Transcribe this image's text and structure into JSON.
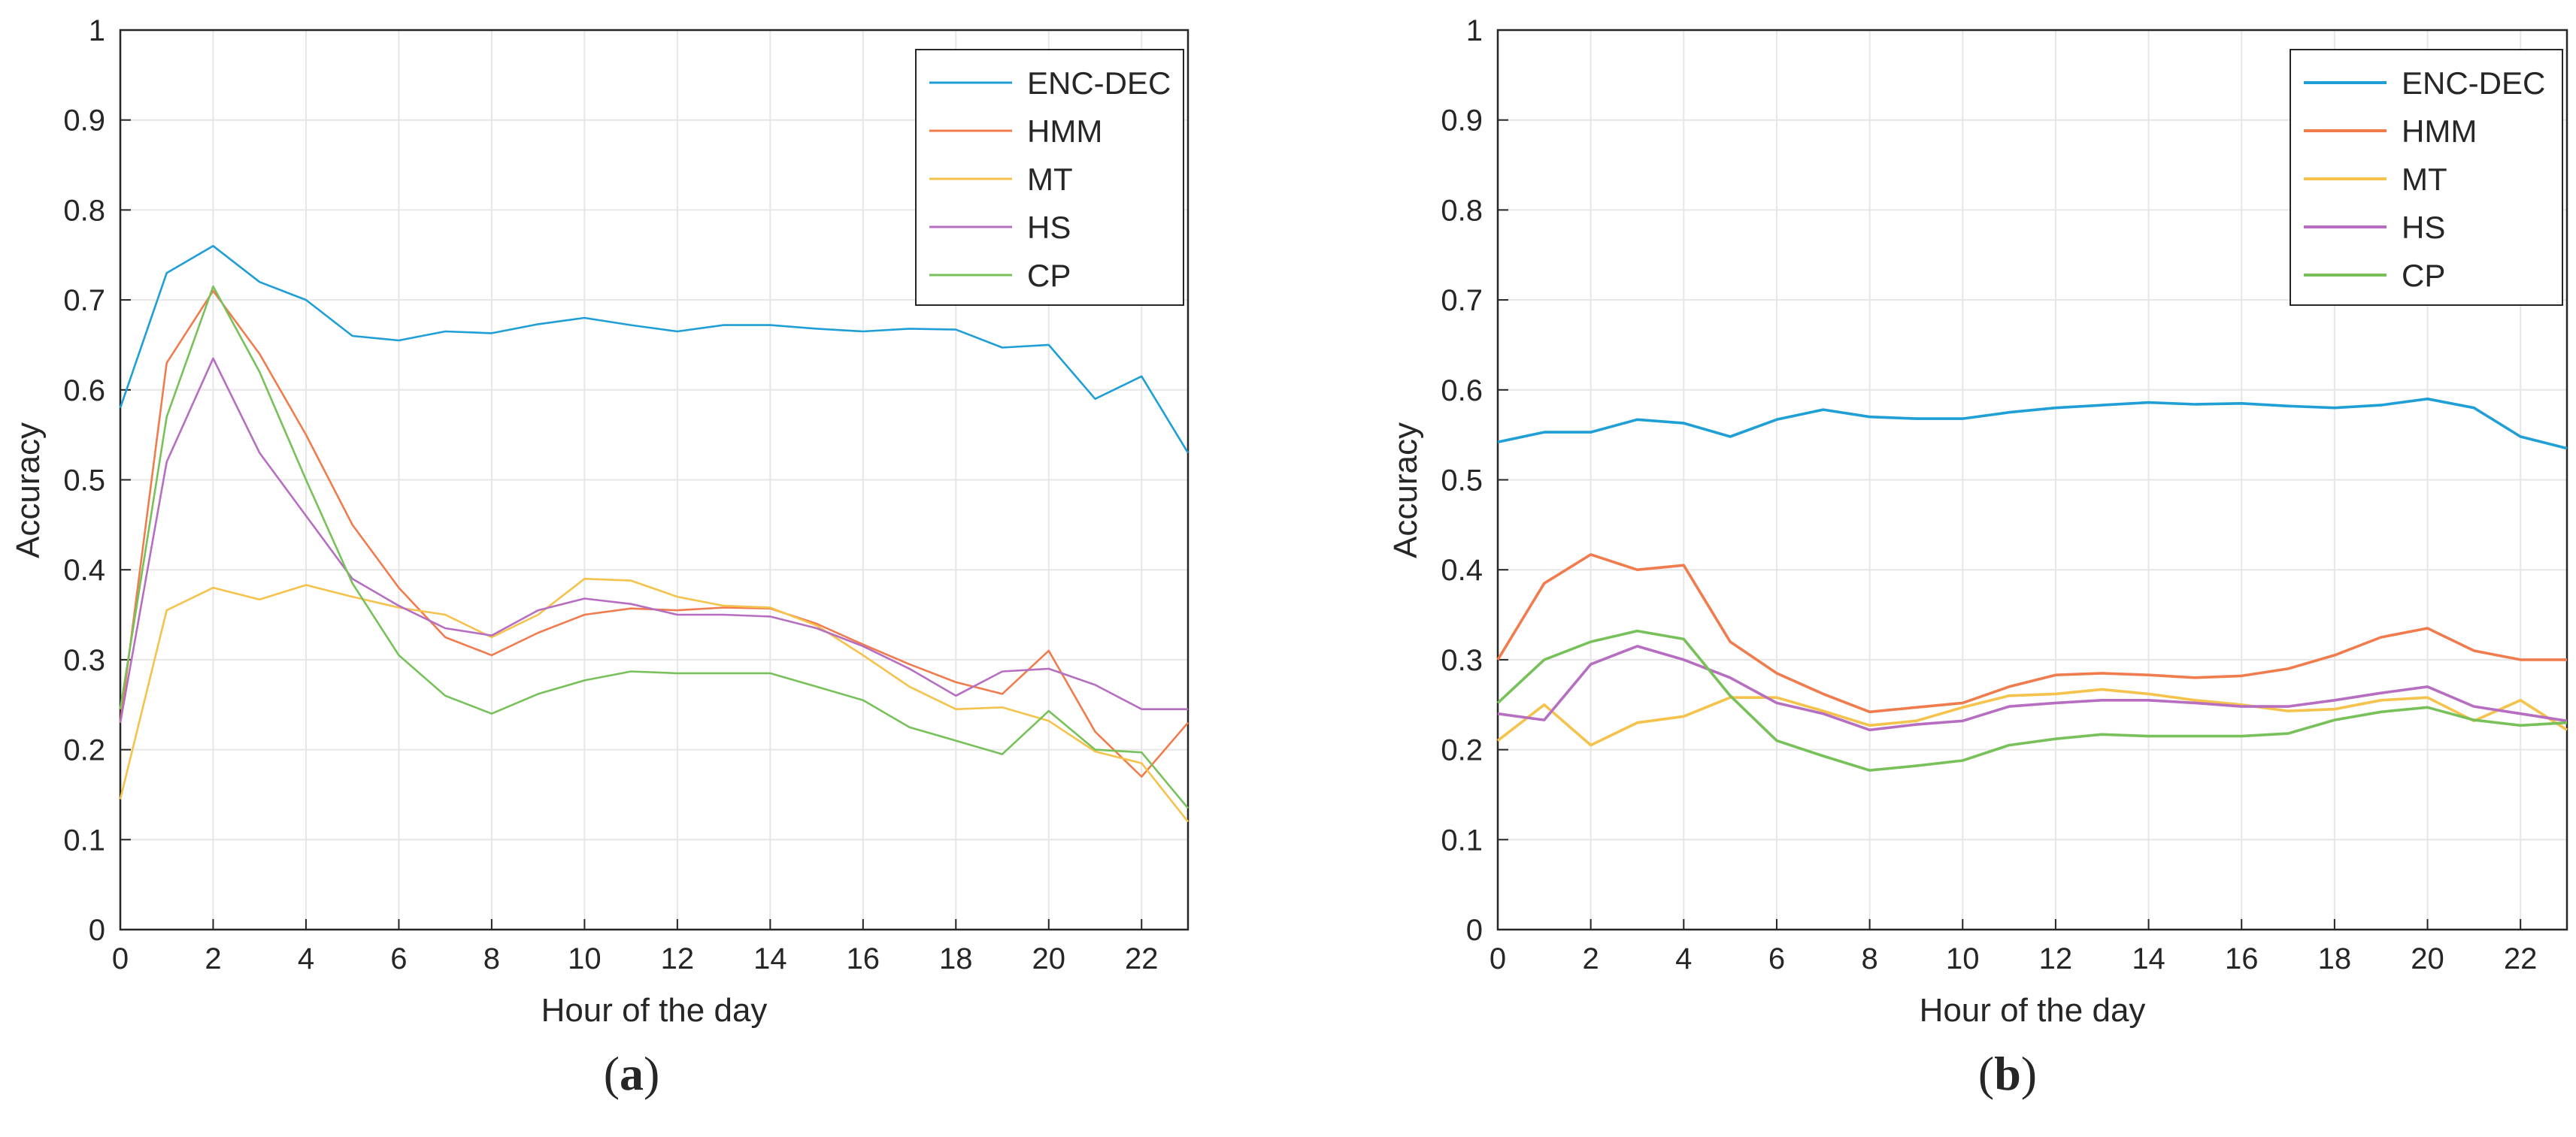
{
  "chart_data": [
    {
      "type": "line",
      "panel_label": "(a)",
      "panel_letter": "a",
      "xlabel": "Hour of the day",
      "ylabel": "Accuracy",
      "xlim": [
        0,
        23
      ],
      "ylim": [
        0,
        1
      ],
      "xticks": [
        0,
        2,
        4,
        6,
        8,
        10,
        12,
        14,
        16,
        18,
        20,
        22
      ],
      "yticks": [
        0,
        0.1,
        0.2,
        0.3,
        0.4,
        0.5,
        0.6,
        0.7,
        0.8,
        0.9,
        1
      ],
      "grid": true,
      "legend_position": "top-right",
      "x": [
        0,
        1,
        2,
        3,
        4,
        5,
        6,
        7,
        8,
        9,
        10,
        11,
        12,
        13,
        14,
        15,
        16,
        17,
        18,
        19,
        20,
        21,
        22,
        23
      ],
      "series": [
        {
          "name": "ENC-DEC",
          "color": "#1f9fd6",
          "values": [
            0.58,
            0.73,
            0.76,
            0.72,
            0.7,
            0.66,
            0.655,
            0.665,
            0.663,
            0.673,
            0.68,
            0.672,
            0.665,
            0.672,
            0.672,
            0.668,
            0.665,
            0.668,
            0.667,
            0.647,
            0.65,
            0.59,
            0.615,
            0.53
          ]
        },
        {
          "name": "HMM",
          "color": "#f07c4e",
          "values": [
            0.23,
            0.63,
            0.71,
            0.64,
            0.55,
            0.45,
            0.38,
            0.325,
            0.305,
            0.33,
            0.35,
            0.357,
            0.355,
            0.358,
            0.357,
            0.34,
            0.317,
            0.295,
            0.275,
            0.262,
            0.31,
            0.22,
            0.17,
            0.23
          ]
        },
        {
          "name": "MT",
          "color": "#f5c24b",
          "values": [
            0.145,
            0.355,
            0.38,
            0.367,
            0.383,
            0.37,
            0.358,
            0.35,
            0.325,
            0.35,
            0.39,
            0.388,
            0.37,
            0.36,
            0.358,
            0.338,
            0.305,
            0.27,
            0.245,
            0.247,
            0.232,
            0.198,
            0.185,
            0.12
          ]
        },
        {
          "name": "HS",
          "color": "#b66ec1",
          "values": [
            0.23,
            0.52,
            0.635,
            0.53,
            0.46,
            0.39,
            0.36,
            0.335,
            0.327,
            0.355,
            0.368,
            0.362,
            0.35,
            0.35,
            0.348,
            0.335,
            0.315,
            0.29,
            0.26,
            0.287,
            0.29,
            0.272,
            0.245,
            0.245
          ]
        },
        {
          "name": "CP",
          "color": "#78c15a",
          "values": [
            0.245,
            0.57,
            0.715,
            0.62,
            0.5,
            0.385,
            0.305,
            0.26,
            0.24,
            0.262,
            0.277,
            0.287,
            0.285,
            0.285,
            0.285,
            0.27,
            0.255,
            0.225,
            0.21,
            0.195,
            0.243,
            0.2,
            0.197,
            0.135
          ]
        }
      ]
    },
    {
      "type": "line",
      "panel_label": "(b)",
      "panel_letter": "b",
      "xlabel": "Hour of the day",
      "ylabel": "Accuracy",
      "xlim": [
        0,
        23
      ],
      "ylim": [
        0,
        1
      ],
      "xticks": [
        0,
        2,
        4,
        6,
        8,
        10,
        12,
        14,
        16,
        18,
        20,
        22
      ],
      "yticks": [
        0,
        0.1,
        0.2,
        0.3,
        0.4,
        0.5,
        0.6,
        0.7,
        0.8,
        0.9,
        1
      ],
      "grid": true,
      "legend_position": "top-right",
      "x": [
        0,
        1,
        2,
        3,
        4,
        5,
        6,
        7,
        8,
        9,
        10,
        11,
        12,
        13,
        14,
        15,
        16,
        17,
        18,
        19,
        20,
        21,
        22,
        23
      ],
      "series": [
        {
          "name": "ENC-DEC",
          "color": "#1f9fd6",
          "values": [
            0.542,
            0.553,
            0.553,
            0.567,
            0.563,
            0.548,
            0.567,
            0.578,
            0.57,
            0.568,
            0.568,
            0.575,
            0.58,
            0.583,
            0.586,
            0.584,
            0.585,
            0.582,
            0.58,
            0.583,
            0.59,
            0.58,
            0.548,
            0.535
          ]
        },
        {
          "name": "HMM",
          "color": "#f07c4e",
          "values": [
            0.3,
            0.385,
            0.417,
            0.4,
            0.405,
            0.32,
            0.285,
            0.262,
            0.242,
            0.247,
            0.252,
            0.27,
            0.283,
            0.285,
            0.283,
            0.28,
            0.282,
            0.29,
            0.305,
            0.325,
            0.335,
            0.31,
            0.3,
            0.3
          ]
        },
        {
          "name": "MT",
          "color": "#f5c24b",
          "values": [
            0.21,
            0.25,
            0.205,
            0.23,
            0.237,
            0.258,
            0.258,
            0.243,
            0.227,
            0.232,
            0.247,
            0.26,
            0.262,
            0.267,
            0.262,
            0.255,
            0.25,
            0.243,
            0.245,
            0.255,
            0.258,
            0.232,
            0.255,
            0.222
          ]
        },
        {
          "name": "HS",
          "color": "#b66ec1",
          "values": [
            0.24,
            0.233,
            0.295,
            0.315,
            0.3,
            0.28,
            0.252,
            0.24,
            0.222,
            0.228,
            0.232,
            0.248,
            0.252,
            0.255,
            0.255,
            0.252,
            0.248,
            0.248,
            0.255,
            0.263,
            0.27,
            0.248,
            0.24,
            0.232
          ]
        },
        {
          "name": "CP",
          "color": "#78c15a",
          "values": [
            0.252,
            0.3,
            0.32,
            0.332,
            0.323,
            0.26,
            0.21,
            0.193,
            0.177,
            0.182,
            0.188,
            0.205,
            0.212,
            0.217,
            0.215,
            0.215,
            0.215,
            0.218,
            0.233,
            0.242,
            0.247,
            0.233,
            0.227,
            0.23
          ]
        }
      ]
    }
  ]
}
